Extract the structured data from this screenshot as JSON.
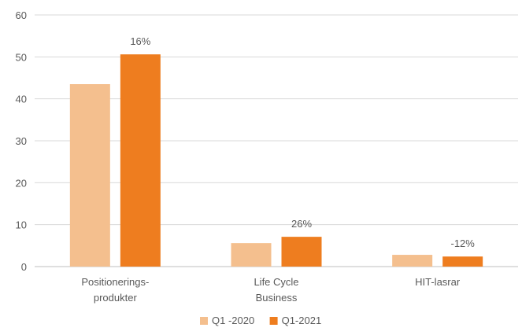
{
  "chart_data": {
    "type": "bar",
    "title": "",
    "xlabel": "",
    "ylabel": "",
    "ylim": [
      0,
      60
    ],
    "yticks": [
      0,
      10,
      20,
      30,
      40,
      50,
      60
    ],
    "grid": true,
    "legend_position": "bottom",
    "categories": [
      [
        "Positionerings-",
        "produkter"
      ],
      [
        "Life Cycle",
        "Business"
      ],
      [
        "HIT-lasrar"
      ]
    ],
    "series": [
      {
        "name": "Q1 -2020",
        "color": "#F4BF8E",
        "values": [
          43.5,
          5.6,
          2.8
        ]
      },
      {
        "name": "Q1-2021",
        "color": "#EE7D1F",
        "values": [
          50.6,
          7.1,
          2.4
        ]
      }
    ],
    "annotations": [
      "16%",
      "26%",
      "-12%"
    ],
    "colors": {
      "grid": "#D9D9D9",
      "axis": "#BFBFBF",
      "text": "#595959"
    }
  }
}
